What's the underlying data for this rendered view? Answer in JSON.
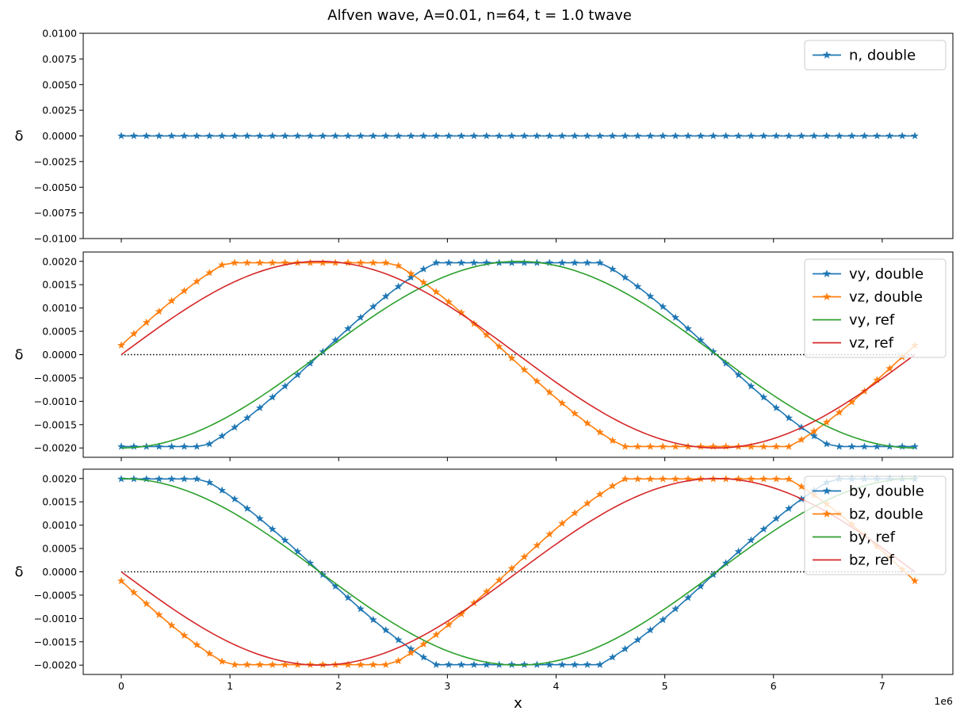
{
  "figure": {
    "title": "Alfven wave, A=0.01, n=64, t = 1.0 twave"
  },
  "colors": {
    "blue": "#1f77b4",
    "orange": "#ff7f0e",
    "green": "#2ca02c",
    "red": "#d62728",
    "zero_line": "#000000"
  },
  "chart_data": [
    {
      "type": "line",
      "title": "",
      "xlabel": "",
      "ylabel": "δ",
      "xlim": [
        -350000,
        7650000
      ],
      "ylim": [
        -0.01,
        0.01
      ],
      "yticks": [
        -0.01,
        -0.0075,
        -0.005,
        -0.0025,
        0,
        0.0025,
        0.005,
        0.0075,
        0.01
      ],
      "ytick_labels": [
        "−0.0100",
        "−0.0075",
        "−0.0050",
        "−0.0025",
        "0.0000",
        "0.0025",
        "0.0050",
        "0.0075",
        "0.0100"
      ],
      "xticks": [
        0,
        1000000,
        2000000,
        3000000,
        4000000,
        5000000,
        6000000,
        7000000
      ],
      "xtick_labels_visible": false,
      "zero_line": true,
      "legend_position": "top-right",
      "series": [
        {
          "name": "n, double",
          "color": "#1f77b4",
          "marker": "star",
          "generator": {
            "kind": "const",
            "value": 0,
            "n": 64,
            "x0": 0,
            "x1": 7300000
          }
        }
      ]
    },
    {
      "type": "line",
      "title": "",
      "xlabel": "",
      "ylabel": "δ",
      "xlim": [
        -350000,
        7650000
      ],
      "ylim": [
        -0.0022,
        0.0022
      ],
      "yticks": [
        -0.002,
        -0.0015,
        -0.001,
        -0.0005,
        0,
        0.0005,
        0.001,
        0.0015,
        0.002
      ],
      "ytick_labels": [
        "−0.0020",
        "−0.0015",
        "−0.0010",
        "−0.0005",
        "0.0000",
        "0.0005",
        "0.0010",
        "0.0015",
        "0.0020"
      ],
      "xticks": [
        0,
        1000000,
        2000000,
        3000000,
        4000000,
        5000000,
        6000000,
        7000000
      ],
      "xtick_labels_visible": false,
      "zero_line": true,
      "legend_position": "top-right",
      "series": [
        {
          "name": "vy, double",
          "color": "#1f77b4",
          "marker": "star",
          "generator": {
            "kind": "clipped_sin",
            "amp": 0.002,
            "clip": 0.00197,
            "phase": -1.5708,
            "lambda": 7300000,
            "n": 64,
            "x0": 0,
            "x1": 7300000
          }
        },
        {
          "name": "vz, double",
          "color": "#ff7f0e",
          "marker": "star",
          "generator": {
            "kind": "clipped_sin",
            "amp": 0.002,
            "clip": 0.00197,
            "phase": 0.08,
            "lambda": 7300000,
            "n": 64,
            "x0": 0,
            "x1": 7300000
          }
        },
        {
          "name": "vy, ref",
          "color": "#2ca02c",
          "marker": "none",
          "generator": {
            "kind": "sin",
            "amp": 0.002,
            "phase": -1.5708,
            "lambda": 7300000,
            "n": 200,
            "x0": 0,
            "x1": 7300000
          }
        },
        {
          "name": "vz, ref",
          "color": "#d62728",
          "marker": "none",
          "generator": {
            "kind": "sin",
            "amp": 0.002,
            "phase": 0,
            "lambda": 7300000,
            "n": 200,
            "x0": 0,
            "x1": 7300000
          }
        }
      ]
    },
    {
      "type": "line",
      "title": "",
      "xlabel": "x",
      "ylabel": "δ",
      "x_offset_label": "1e6",
      "xlim": [
        -350000,
        7650000
      ],
      "ylim": [
        -0.0022,
        0.0022
      ],
      "yticks": [
        -0.002,
        -0.0015,
        -0.001,
        -0.0005,
        0,
        0.0005,
        0.001,
        0.0015,
        0.002
      ],
      "ytick_labels": [
        "−0.0020",
        "−0.0015",
        "−0.0010",
        "−0.0005",
        "0.0000",
        "0.0005",
        "0.0010",
        "0.0015",
        "0.0020"
      ],
      "xticks": [
        0,
        1000000,
        2000000,
        3000000,
        4000000,
        5000000,
        6000000,
        7000000
      ],
      "xtick_labels": [
        "0",
        "1",
        "2",
        "3",
        "4",
        "5",
        "6",
        "7"
      ],
      "xtick_labels_visible": true,
      "zero_line": true,
      "legend_position": "top-right",
      "series": [
        {
          "name": "by, double",
          "color": "#1f77b4",
          "marker": "star",
          "generator": {
            "kind": "clipped_sin",
            "amp": 0.002,
            "clip": 0.00199,
            "phase": 1.5708,
            "lambda": 7300000,
            "n": 64,
            "x0": 0,
            "x1": 7300000
          }
        },
        {
          "name": "bz, double",
          "color": "#ff7f0e",
          "marker": "star",
          "generator": {
            "kind": "clipped_sin",
            "amp": 0.002,
            "clip": 0.00199,
            "phase": 3.22,
            "lambda": 7300000,
            "n": 64,
            "x0": 0,
            "x1": 7300000
          }
        },
        {
          "name": "by, ref",
          "color": "#2ca02c",
          "marker": "none",
          "generator": {
            "kind": "sin",
            "amp": 0.002,
            "phase": 1.5708,
            "lambda": 7300000,
            "n": 200,
            "x0": 0,
            "x1": 7300000
          }
        },
        {
          "name": "bz, ref",
          "color": "#d62728",
          "marker": "none",
          "generator": {
            "kind": "sin",
            "amp": 0.002,
            "phase": 3.14159,
            "lambda": 7300000,
            "n": 200,
            "x0": 0,
            "x1": 7300000
          }
        }
      ]
    }
  ]
}
